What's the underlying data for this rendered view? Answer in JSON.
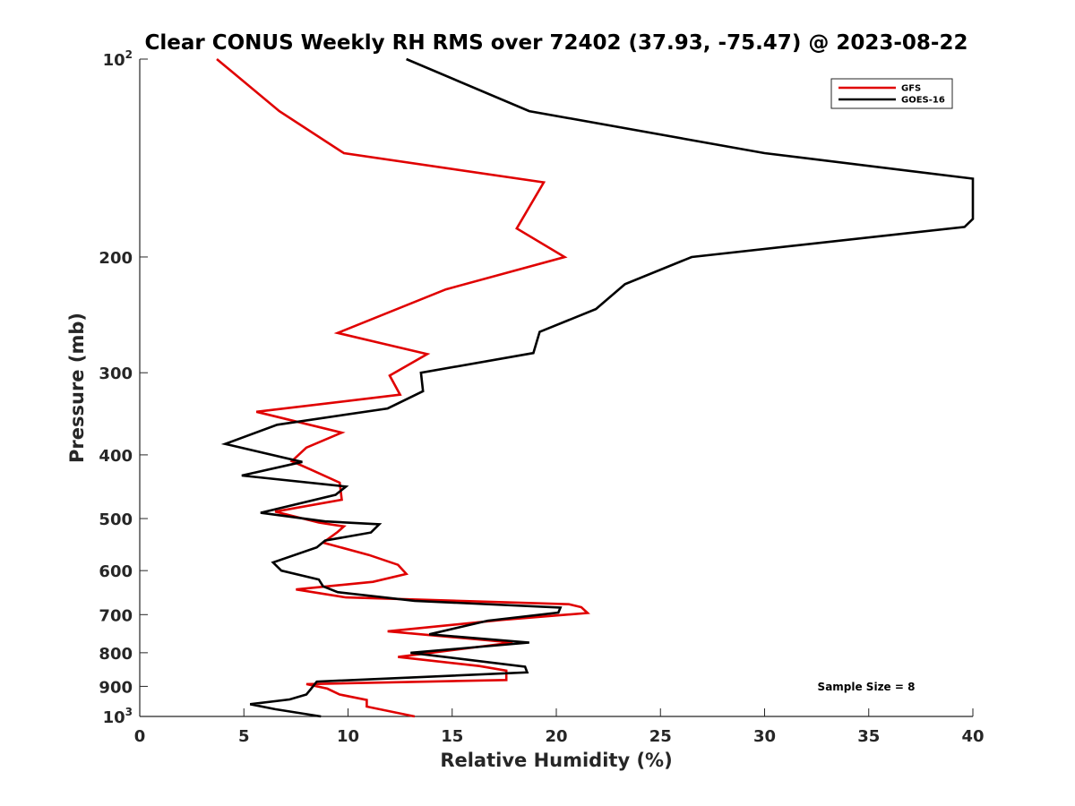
{
  "chart_data": {
    "type": "line",
    "title": "Clear CONUS Weekly RH RMS over 72402 (37.93, -75.47) @ 2023-08-22",
    "xlabel": "Relative Humidity (%)",
    "ylabel": "Pressure (mb)",
    "xlim": [
      0,
      40
    ],
    "ylim": [
      100,
      1000
    ],
    "yscale": "log",
    "yreversed": true,
    "xticks": [
      0,
      5,
      10,
      15,
      20,
      25,
      30,
      35,
      40
    ],
    "yticks": [
      {
        "value": 100,
        "base": "10",
        "exp": "2"
      },
      {
        "value": 200,
        "label": "200"
      },
      {
        "value": 300,
        "label": "300"
      },
      {
        "value": 400,
        "label": "400"
      },
      {
        "value": 500,
        "label": "500"
      },
      {
        "value": 600,
        "label": "600"
      },
      {
        "value": 700,
        "label": "700"
      },
      {
        "value": 800,
        "label": "800"
      },
      {
        "value": 900,
        "label": "900"
      },
      {
        "value": 1000,
        "base": "10",
        "exp": "3"
      }
    ],
    "legend_position": "top-right",
    "annotation": "Sample Size = 8",
    "series": [
      {
        "name": "GFS",
        "color": "#e00000",
        "points": [
          [
            3.7,
            100
          ],
          [
            6.7,
            120
          ],
          [
            9.8,
            139
          ],
          [
            19.4,
            154
          ],
          [
            18.1,
            181
          ],
          [
            20.4,
            200
          ],
          [
            14.7,
            224
          ],
          [
            9.5,
            261
          ],
          [
            13.8,
            281
          ],
          [
            12.0,
            303
          ],
          [
            12.5,
            324
          ],
          [
            5.6,
            344
          ],
          [
            9.7,
            370
          ],
          [
            8.0,
            390
          ],
          [
            7.3,
            409
          ],
          [
            8.2,
            421
          ],
          [
            9.6,
            441
          ],
          [
            9.7,
            468
          ],
          [
            6.5,
            488
          ],
          [
            8.6,
            507
          ],
          [
            9.8,
            514
          ],
          [
            9.5,
            524
          ],
          [
            8.8,
            544
          ],
          [
            11.0,
            568
          ],
          [
            12.4,
            588
          ],
          [
            12.8,
            607
          ],
          [
            11.2,
            624
          ],
          [
            7.5,
            641
          ],
          [
            9.9,
            659
          ],
          [
            20.6,
            675
          ],
          [
            21.2,
            682
          ],
          [
            21.5,
            696
          ],
          [
            17.4,
            713
          ],
          [
            11.9,
            742
          ],
          [
            17.9,
            772
          ],
          [
            12.4,
            812
          ],
          [
            16.3,
            838
          ],
          [
            17.6,
            852
          ],
          [
            17.6,
            880
          ],
          [
            8.0,
            893
          ],
          [
            9.0,
            907
          ],
          [
            9.6,
            926
          ],
          [
            10.9,
            944
          ],
          [
            10.9,
            966
          ],
          [
            13.2,
            1000
          ]
        ]
      },
      {
        "name": "GOES-16",
        "color": "#000000",
        "points": [
          [
            12.8,
            100
          ],
          [
            18.7,
            120
          ],
          [
            30.0,
            139
          ],
          [
            40.0,
            152
          ],
          [
            40.0,
            175
          ],
          [
            39.6,
            180
          ],
          [
            26.5,
            200
          ],
          [
            23.3,
            220
          ],
          [
            21.9,
            240
          ],
          [
            19.2,
            260
          ],
          [
            18.9,
            280
          ],
          [
            13.5,
            300
          ],
          [
            13.6,
            320
          ],
          [
            11.9,
            340
          ],
          [
            6.6,
            360
          ],
          [
            4.1,
            385
          ],
          [
            7.8,
            410
          ],
          [
            4.9,
            430
          ],
          [
            9.9,
            447
          ],
          [
            9.4,
            460
          ],
          [
            5.8,
            490
          ],
          [
            8.9,
            505
          ],
          [
            11.5,
            510
          ],
          [
            11.1,
            525
          ],
          [
            8.9,
            540
          ],
          [
            8.5,
            553
          ],
          [
            6.4,
            583
          ],
          [
            6.8,
            600
          ],
          [
            8.6,
            619
          ],
          [
            8.8,
            634
          ],
          [
            9.5,
            647
          ],
          [
            13.2,
            667
          ],
          [
            20.2,
            683
          ],
          [
            20.1,
            695
          ],
          [
            16.7,
            715
          ],
          [
            13.9,
            750
          ],
          [
            18.7,
            772
          ],
          [
            13.0,
            800
          ],
          [
            18.5,
            840
          ],
          [
            18.6,
            857
          ],
          [
            8.5,
            885
          ],
          [
            8.2,
            910
          ],
          [
            8.0,
            926
          ],
          [
            7.2,
            942
          ],
          [
            5.3,
            958
          ],
          [
            6.5,
            975
          ],
          [
            8.7,
            1000
          ]
        ]
      }
    ]
  }
}
